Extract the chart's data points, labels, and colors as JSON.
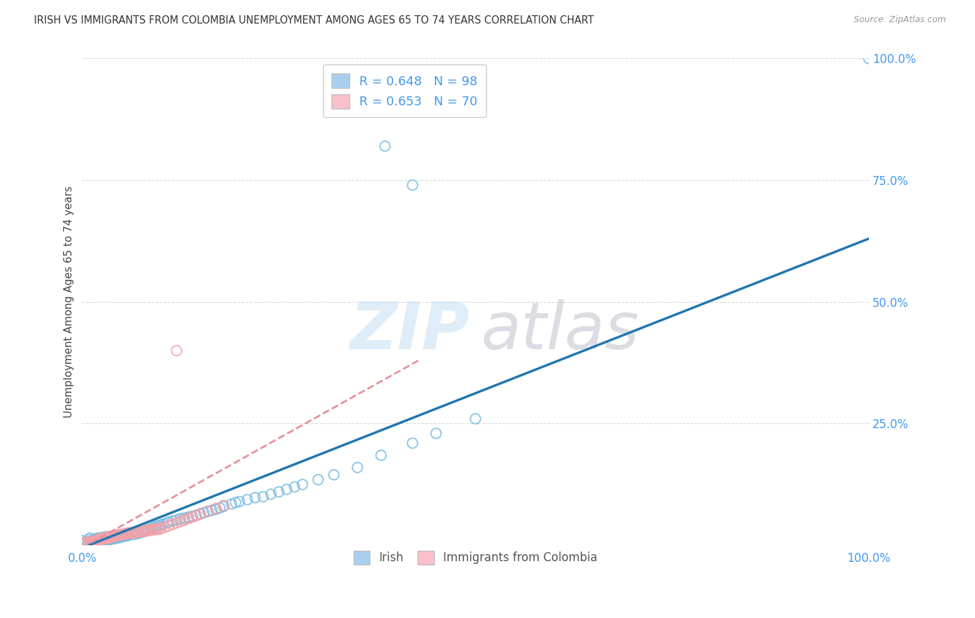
{
  "title": "IRISH VS IMMIGRANTS FROM COLOMBIA UNEMPLOYMENT AMONG AGES 65 TO 74 YEARS CORRELATION CHART",
  "source": "Source: ZipAtlas.com",
  "ylabel": "Unemployment Among Ages 65 to 74 years",
  "irish_color": "#7bbde0",
  "ireland_edge_color": "#7bbde0",
  "colombia_color": "#f4a0a8",
  "colombia_edge_color": "#f4a0a8",
  "irish_line_color": "#2176ae",
  "colombia_line_color": "#e8909a",
  "legend_irish_label": "R = 0.648   N = 98",
  "legend_colombia_label": "R = 0.653   N = 70",
  "legend_irish_patch": "#aacfee",
  "legend_colombia_patch": "#f8c0c8",
  "background_color": "#ffffff",
  "grid_color": "#d8d8d8",
  "tick_color": "#4499ee",
  "title_color": "#333333",
  "ylabel_color": "#444444",
  "source_color": "#999999",
  "watermark_zip_color": "#c5dff5",
  "watermark_atlas_color": "#c0c0cc"
}
